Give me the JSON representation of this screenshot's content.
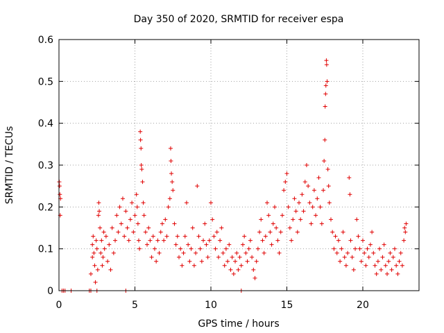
{
  "chart_data": {
    "type": "scatter",
    "title": "Day 350 of 2020, SRMTID for receiver espa",
    "xlabel": "GPS time / hours",
    "ylabel": "SRMTID / TECUs",
    "xlim": [
      0,
      23.7
    ],
    "ylim": [
      0,
      0.6
    ],
    "xticks": [
      0,
      5,
      10,
      15,
      20
    ],
    "yticks": [
      0,
      0.1,
      0.2,
      0.3,
      0.4,
      0.5,
      0.6
    ],
    "ytick_labels": [
      "0",
      "0.1",
      "0.2",
      "0.3",
      "0.4",
      "0.5",
      "0.6"
    ],
    "grid": true,
    "marker": "+",
    "color": "#e00000",
    "series": [
      {
        "name": "SRMTID",
        "points": [
          [
            0.02,
            0.26
          ],
          [
            0.04,
            0.25
          ],
          [
            0.06,
            0.23
          ],
          [
            0.08,
            0.18
          ],
          [
            0.1,
            0.22
          ],
          [
            0.2,
            0.0
          ],
          [
            0.3,
            0.0
          ],
          [
            0.4,
            0.0
          ],
          [
            0.8,
            0.0
          ],
          [
            2.0,
            0.0
          ],
          [
            2.1,
            0.0
          ],
          [
            2.5,
            0.0
          ],
          [
            4.4,
            0.0
          ],
          [
            12.0,
            0.0
          ],
          [
            2.1,
            0.04
          ],
          [
            2.2,
            0.08
          ],
          [
            2.2,
            0.11
          ],
          [
            2.25,
            0.13
          ],
          [
            2.3,
            0.09
          ],
          [
            2.35,
            0.06
          ],
          [
            2.4,
            0.02
          ],
          [
            2.45,
            0.12
          ],
          [
            2.5,
            0.1
          ],
          [
            2.55,
            0.05
          ],
          [
            2.6,
            0.18
          ],
          [
            2.62,
            0.21
          ],
          [
            2.65,
            0.19
          ],
          [
            2.7,
            0.15
          ],
          [
            2.75,
            0.09
          ],
          [
            2.8,
            0.12
          ],
          [
            2.85,
            0.06
          ],
          [
            2.9,
            0.08
          ],
          [
            2.95,
            0.14
          ],
          [
            3.0,
            0.1
          ],
          [
            3.1,
            0.13
          ],
          [
            3.2,
            0.07
          ],
          [
            3.3,
            0.11
          ],
          [
            3.4,
            0.05
          ],
          [
            3.5,
            0.15
          ],
          [
            3.6,
            0.09
          ],
          [
            3.7,
            0.12
          ],
          [
            3.8,
            0.18
          ],
          [
            3.9,
            0.14
          ],
          [
            4.0,
            0.2
          ],
          [
            4.1,
            0.16
          ],
          [
            4.2,
            0.22
          ],
          [
            4.3,
            0.13
          ],
          [
            4.4,
            0.19
          ],
          [
            4.5,
            0.15
          ],
          [
            4.6,
            0.12
          ],
          [
            4.7,
            0.17
          ],
          [
            4.8,
            0.21
          ],
          [
            4.9,
            0.14
          ],
          [
            5.0,
            0.18
          ],
          [
            5.1,
            0.23
          ],
          [
            5.15,
            0.2
          ],
          [
            5.2,
            0.16
          ],
          [
            5.25,
            0.12
          ],
          [
            5.3,
            0.1
          ],
          [
            5.35,
            0.38
          ],
          [
            5.37,
            0.36
          ],
          [
            5.4,
            0.34
          ],
          [
            5.42,
            0.3
          ],
          [
            5.45,
            0.29
          ],
          [
            5.5,
            0.26
          ],
          [
            5.55,
            0.21
          ],
          [
            5.6,
            0.18
          ],
          [
            5.7,
            0.14
          ],
          [
            5.8,
            0.11
          ],
          [
            5.9,
            0.15
          ],
          [
            6.0,
            0.12
          ],
          [
            6.1,
            0.08
          ],
          [
            6.2,
            0.13
          ],
          [
            6.3,
            0.1
          ],
          [
            6.4,
            0.07
          ],
          [
            6.5,
            0.12
          ],
          [
            6.6,
            0.09
          ],
          [
            6.7,
            0.14
          ],
          [
            6.8,
            0.16
          ],
          [
            6.9,
            0.12
          ],
          [
            7.0,
            0.17
          ],
          [
            7.1,
            0.13
          ],
          [
            7.2,
            0.2
          ],
          [
            7.3,
            0.22
          ],
          [
            7.35,
            0.34
          ],
          [
            7.37,
            0.31
          ],
          [
            7.4,
            0.28
          ],
          [
            7.45,
            0.26
          ],
          [
            7.5,
            0.24
          ],
          [
            7.6,
            0.16
          ],
          [
            7.7,
            0.11
          ],
          [
            7.8,
            0.13
          ],
          [
            7.9,
            0.08
          ],
          [
            8.0,
            0.1
          ],
          [
            8.1,
            0.06
          ],
          [
            8.2,
            0.09
          ],
          [
            8.3,
            0.13
          ],
          [
            8.4,
            0.21
          ],
          [
            8.5,
            0.11
          ],
          [
            8.6,
            0.07
          ],
          [
            8.7,
            0.1
          ],
          [
            8.8,
            0.15
          ],
          [
            8.9,
            0.06
          ],
          [
            9.0,
            0.09
          ],
          [
            9.1,
            0.25
          ],
          [
            9.2,
            0.13
          ],
          [
            9.3,
            0.1
          ],
          [
            9.4,
            0.07
          ],
          [
            9.5,
            0.12
          ],
          [
            9.6,
            0.16
          ],
          [
            9.7,
            0.11
          ],
          [
            9.8,
            0.08
          ],
          [
            9.9,
            0.12
          ],
          [
            10.0,
            0.21
          ],
          [
            10.1,
            0.17
          ],
          [
            10.2,
            0.13
          ],
          [
            10.3,
            0.1
          ],
          [
            10.4,
            0.14
          ],
          [
            10.5,
            0.08
          ],
          [
            10.6,
            0.12
          ],
          [
            10.7,
            0.15
          ],
          [
            10.8,
            0.09
          ],
          [
            10.9,
            0.06
          ],
          [
            11.0,
            0.1
          ],
          [
            11.1,
            0.07
          ],
          [
            11.2,
            0.11
          ],
          [
            11.3,
            0.05
          ],
          [
            11.4,
            0.08
          ],
          [
            11.5,
            0.04
          ],
          [
            11.6,
            0.07
          ],
          [
            11.7,
            0.09
          ],
          [
            11.8,
            0.05
          ],
          [
            11.9,
            0.08
          ],
          [
            12.0,
            0.06
          ],
          [
            12.1,
            0.11
          ],
          [
            12.2,
            0.13
          ],
          [
            12.3,
            0.09
          ],
          [
            12.4,
            0.07
          ],
          [
            12.5,
            0.1
          ],
          [
            12.6,
            0.12
          ],
          [
            12.7,
            0.08
          ],
          [
            12.8,
            0.05
          ],
          [
            12.9,
            0.03
          ],
          [
            13.0,
            0.07
          ],
          [
            13.1,
            0.1
          ],
          [
            13.2,
            0.14
          ],
          [
            13.3,
            0.17
          ],
          [
            13.4,
            0.12
          ],
          [
            13.5,
            0.09
          ],
          [
            13.6,
            0.13
          ],
          [
            13.7,
            0.21
          ],
          [
            13.8,
            0.18
          ],
          [
            13.9,
            0.14
          ],
          [
            14.0,
            0.11
          ],
          [
            14.1,
            0.16
          ],
          [
            14.2,
            0.2
          ],
          [
            14.3,
            0.15
          ],
          [
            14.4,
            0.12
          ],
          [
            14.5,
            0.09
          ],
          [
            14.6,
            0.14
          ],
          [
            14.7,
            0.18
          ],
          [
            14.8,
            0.24
          ],
          [
            14.9,
            0.26
          ],
          [
            15.0,
            0.28
          ],
          [
            15.1,
            0.2
          ],
          [
            15.2,
            0.15
          ],
          [
            15.3,
            0.12
          ],
          [
            15.4,
            0.17
          ],
          [
            15.5,
            0.22
          ],
          [
            15.6,
            0.19
          ],
          [
            15.7,
            0.14
          ],
          [
            15.8,
            0.21
          ],
          [
            15.9,
            0.17
          ],
          [
            16.0,
            0.23
          ],
          [
            16.1,
            0.19
          ],
          [
            16.2,
            0.26
          ],
          [
            16.3,
            0.3
          ],
          [
            16.4,
            0.25
          ],
          [
            16.5,
            0.21
          ],
          [
            16.6,
            0.16
          ],
          [
            16.7,
            0.2
          ],
          [
            16.8,
            0.24
          ],
          [
            16.9,
            0.18
          ],
          [
            17.0,
            0.22
          ],
          [
            17.1,
            0.27
          ],
          [
            17.2,
            0.2
          ],
          [
            17.3,
            0.16
          ],
          [
            17.4,
            0.24
          ],
          [
            17.45,
            0.31
          ],
          [
            17.5,
            0.36
          ],
          [
            17.52,
            0.44
          ],
          [
            17.55,
            0.47
          ],
          [
            17.57,
            0.49
          ],
          [
            17.6,
            0.55
          ],
          [
            17.62,
            0.54
          ],
          [
            17.65,
            0.5
          ],
          [
            17.7,
            0.29
          ],
          [
            17.75,
            0.25
          ],
          [
            17.8,
            0.21
          ],
          [
            17.9,
            0.17
          ],
          [
            18.0,
            0.14
          ],
          [
            18.1,
            0.1
          ],
          [
            18.2,
            0.13
          ],
          [
            18.3,
            0.09
          ],
          [
            18.4,
            0.12
          ],
          [
            18.5,
            0.07
          ],
          [
            18.6,
            0.1
          ],
          [
            18.7,
            0.14
          ],
          [
            18.8,
            0.08
          ],
          [
            18.9,
            0.06
          ],
          [
            19.0,
            0.09
          ],
          [
            19.1,
            0.27
          ],
          [
            19.15,
            0.23
          ],
          [
            19.2,
            0.12
          ],
          [
            19.3,
            0.08
          ],
          [
            19.4,
            0.05
          ],
          [
            19.5,
            0.1
          ],
          [
            19.6,
            0.17
          ],
          [
            19.7,
            0.13
          ],
          [
            19.8,
            0.1
          ],
          [
            19.9,
            0.07
          ],
          [
            20.0,
            0.12
          ],
          [
            20.1,
            0.09
          ],
          [
            20.2,
            0.06
          ],
          [
            20.3,
            0.1
          ],
          [
            20.4,
            0.08
          ],
          [
            20.5,
            0.11
          ],
          [
            20.6,
            0.14
          ],
          [
            20.7,
            0.09
          ],
          [
            20.8,
            0.06
          ],
          [
            20.9,
            0.04
          ],
          [
            21.0,
            0.07
          ],
          [
            21.1,
            0.1
          ],
          [
            21.2,
            0.05
          ],
          [
            21.3,
            0.08
          ],
          [
            21.4,
            0.11
          ],
          [
            21.5,
            0.06
          ],
          [
            21.6,
            0.04
          ],
          [
            21.7,
            0.07
          ],
          [
            21.8,
            0.09
          ],
          [
            21.9,
            0.05
          ],
          [
            22.0,
            0.08
          ],
          [
            22.1,
            0.1
          ],
          [
            22.2,
            0.06
          ],
          [
            22.3,
            0.04
          ],
          [
            22.4,
            0.07
          ],
          [
            22.5,
            0.09
          ],
          [
            22.6,
            0.06
          ],
          [
            22.7,
            0.12
          ],
          [
            22.75,
            0.15
          ],
          [
            22.8,
            0.14
          ],
          [
            22.85,
            0.16
          ]
        ]
      }
    ]
  }
}
